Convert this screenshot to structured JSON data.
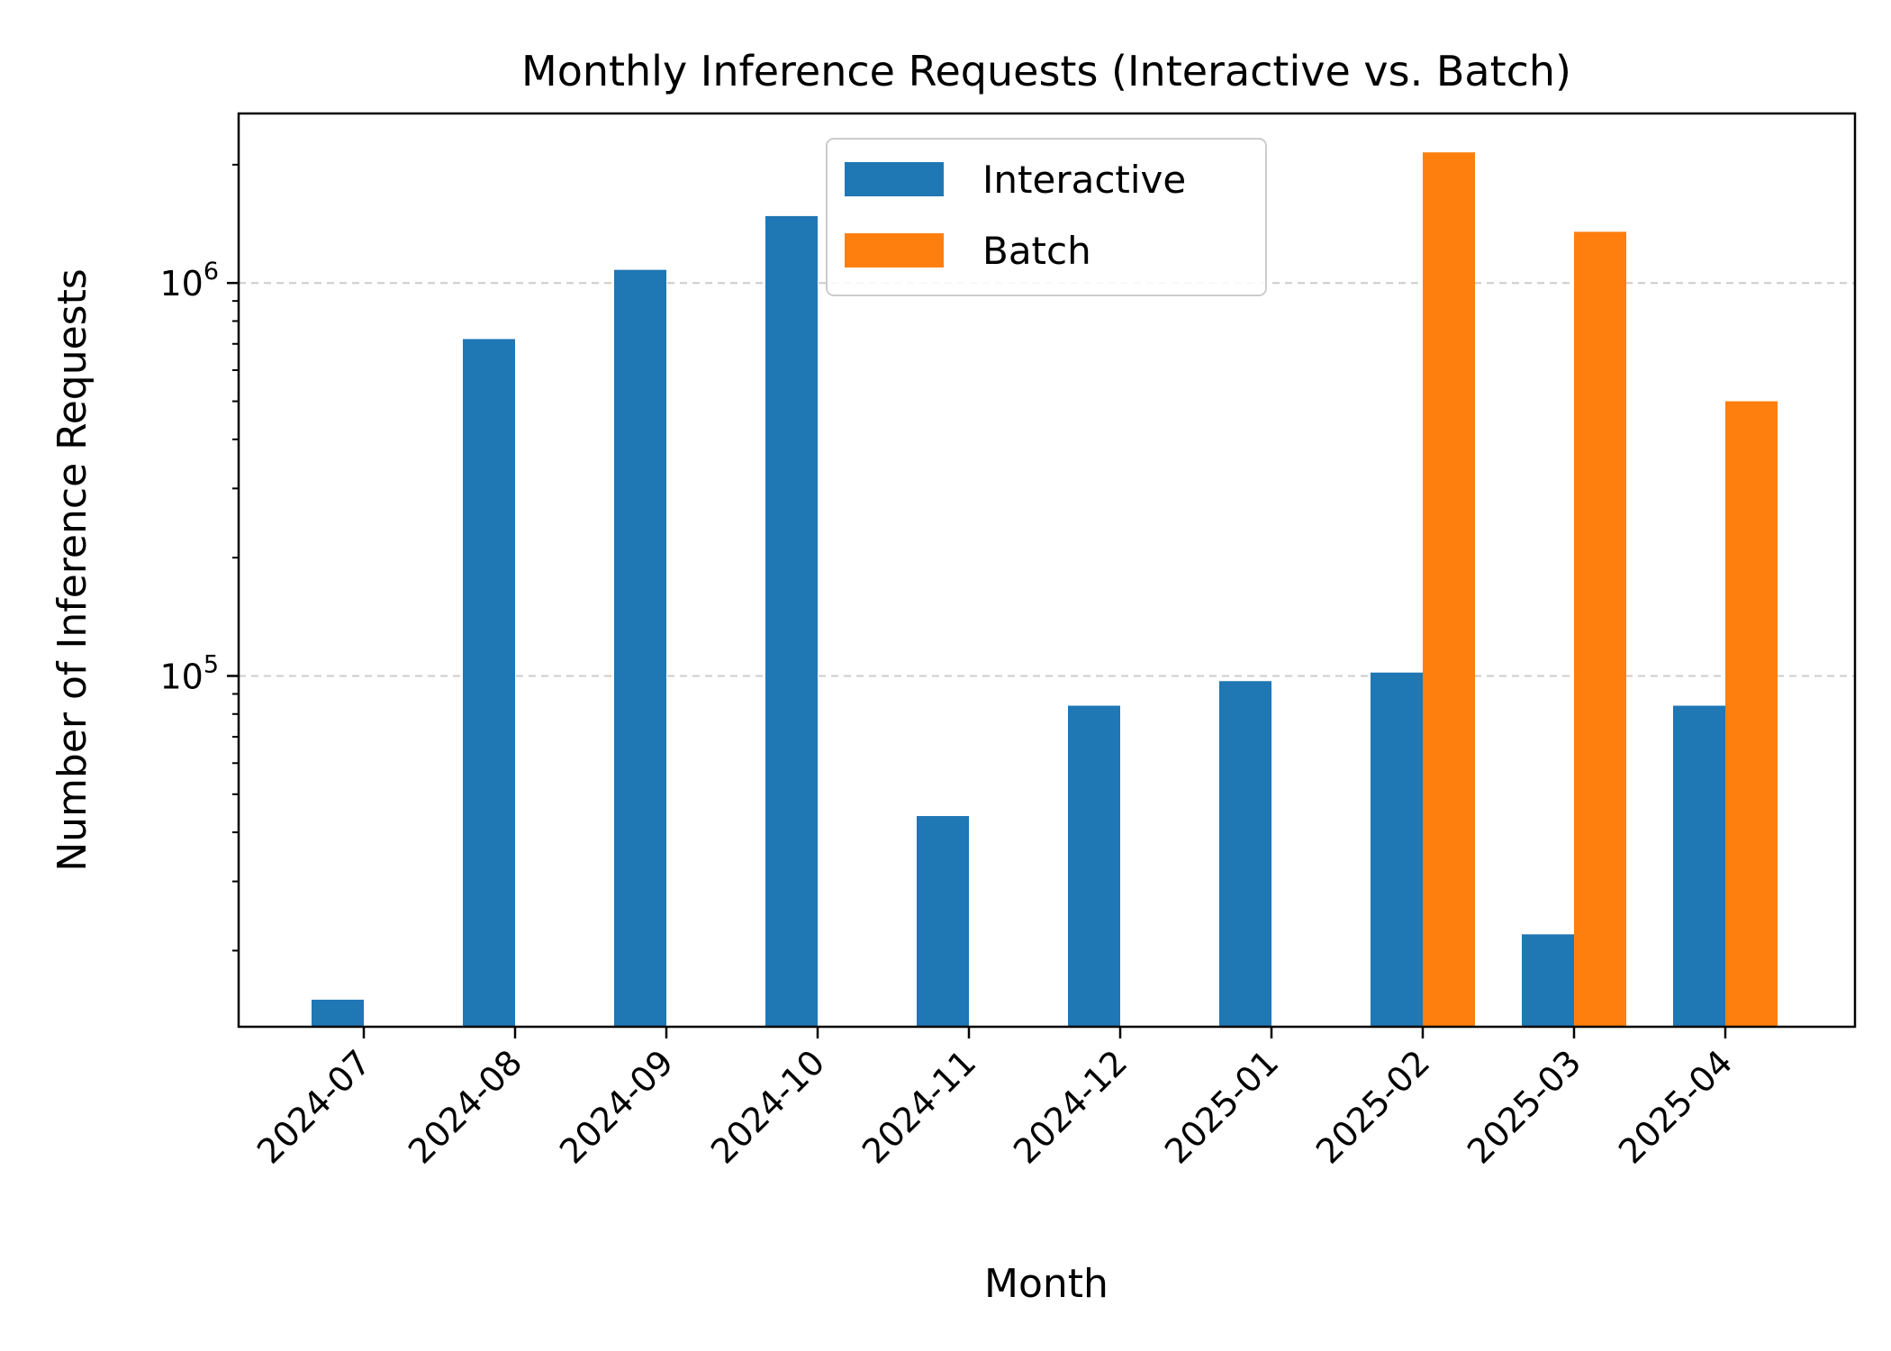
{
  "chart_data": {
    "type": "bar",
    "title": "Monthly Inference Requests (Interactive vs. Batch)",
    "xlabel": "Month",
    "ylabel": "Number of Inference Requests",
    "categories": [
      "2024-07",
      "2024-08",
      "2024-09",
      "2024-10",
      "2024-11",
      "2024-12",
      "2025-01",
      "2025-02",
      "2025-03",
      "2025-04"
    ],
    "series": [
      {
        "name": "Interactive",
        "color": "#1f77b4",
        "values": [
          15000,
          720000,
          1080000,
          1480000,
          44000,
          84000,
          97000,
          102000,
          22000,
          84000
        ]
      },
      {
        "name": "Batch",
        "color": "#ff7f0e",
        "values": [
          null,
          null,
          null,
          null,
          null,
          null,
          null,
          2150000,
          1350000,
          500000
        ]
      }
    ],
    "ylim": [
      12800,
      2700000
    ],
    "yscale": "log",
    "yticks": [
      {
        "value": 100000,
        "base": "10",
        "exp": "5"
      },
      {
        "value": 1000000,
        "base": "10",
        "exp": "6"
      }
    ],
    "grid": "y-major dashed",
    "legend_position": "top-center"
  }
}
